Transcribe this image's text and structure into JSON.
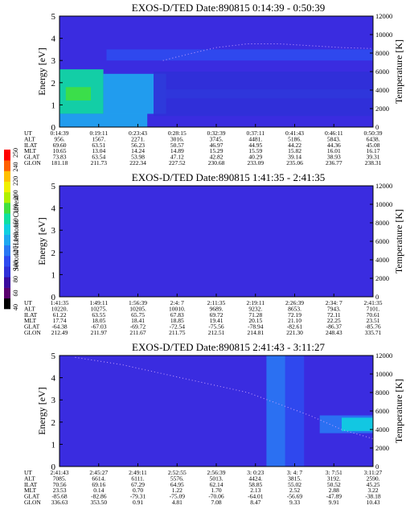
{
  "colorbar": {
    "title": "Second Harmonic Current",
    "ticks": [
      "40",
      "60",
      "80",
      "100",
      "120",
      "140",
      "160",
      "180",
      "200",
      "220",
      "240",
      "250"
    ],
    "colors": [
      "#000000",
      "#5a006e",
      "#3a0a9e",
      "#3030d8",
      "#2f4bf0",
      "#2a78f4",
      "#1fa8f0",
      "#10d0e0",
      "#10e0a0",
      "#40e040",
      "#b0f000",
      "#f0f000",
      "#ffc000",
      "#ff6000",
      "#ff0000"
    ]
  },
  "chart_data": [
    {
      "type": "heatmap",
      "title": "EXOS-D/TED   Date:890815  0:14:39 - 0:50:39",
      "ylabel": "Energy [eV]",
      "ylabel_right": "Temperature [K]",
      "ylim": [
        0,
        5
      ],
      "yticks": [
        "0",
        "1",
        "2",
        "3",
        "4",
        "5"
      ],
      "ylim_right": [
        0,
        12000
      ],
      "yticks_right": [
        "0",
        "2000",
        "4000",
        "6000",
        "8000",
        "10000",
        "12000"
      ],
      "row_labels": [
        "UT",
        "ALT",
        "ILAT",
        "MLT",
        "GLAT",
        "GLON"
      ],
      "columns": [
        [
          "0:14:39",
          "956.",
          "69.60",
          "10.65",
          "73.83",
          "181.18"
        ],
        [
          "0:19:11",
          "1567.",
          "63.51",
          "13.04",
          "63.54",
          "211.73"
        ],
        [
          "0:23:43",
          "2271.",
          "56.23",
          "14.24",
          "53.98",
          "222.34"
        ],
        [
          "0:28:15",
          "3016.",
          "50.57",
          "14.89",
          "47.12",
          "227.52"
        ],
        [
          "0:32:39",
          "3745.",
          "46.97",
          "15.29",
          "42.82",
          "230.68"
        ],
        [
          "0:37:11",
          "4481.",
          "44.95",
          "15.59",
          "40.29",
          "233.09"
        ],
        [
          "0:41:43",
          "5186.",
          "44.22",
          "15.82",
          "39.14",
          "235.06"
        ],
        [
          "0:46:11",
          "5843.",
          "44.36",
          "16.01",
          "38.93",
          "236.77"
        ],
        [
          "0:50:39",
          "6438.",
          "45.08",
          "16.17",
          "39.31",
          "238.31"
        ]
      ],
      "bands": [
        {
          "e0": 0,
          "e1": 0.6,
          "t0": 0,
          "t1": 0.28,
          "color": "#1fa8f0"
        },
        {
          "e0": 0.6,
          "e1": 2.6,
          "t0": 0,
          "t1": 0.14,
          "color": "#10e0a0"
        },
        {
          "e0": 0.6,
          "e1": 2.4,
          "t0": 0.14,
          "t1": 0.34,
          "color": "#1fa8f0"
        },
        {
          "e0": 1.2,
          "e1": 1.8,
          "t0": 0.02,
          "t1": 0.1,
          "color": "#40e040"
        },
        {
          "e0": 1.3,
          "e1": 1.7,
          "t0": 0.34,
          "t1": 1.0,
          "color": "#2a78f4"
        },
        {
          "e0": 3.0,
          "e1": 3.5,
          "t0": 0.15,
          "t1": 1.0,
          "color": "#2f4bf0"
        },
        {
          "e0": 0.5,
          "e1": 2.5,
          "t0": 0.3,
          "t1": 1.0,
          "color": "#3030d8"
        }
      ],
      "temperature": {
        "t": [
          0.33,
          0.4,
          0.5,
          0.6,
          0.7,
          0.8,
          0.9,
          1.0
        ],
        "K": [
          7200,
          7800,
          8600,
          9000,
          9000,
          8800,
          8600,
          8500
        ]
      }
    },
    {
      "type": "heatmap",
      "title": "EXOS-D/TED   Date:890815  1:41:35 - 2:41:35",
      "ylabel": "Energy [eV]",
      "ylabel_right": "Temperature [K]",
      "ylim": [
        0,
        5
      ],
      "yticks": [
        "0",
        "1",
        "2",
        "3",
        "4",
        "5"
      ],
      "ylim_right": [
        0,
        12000
      ],
      "yticks_right": [
        "0",
        "2000",
        "4000",
        "6000",
        "8000",
        "10000",
        "12000"
      ],
      "row_labels": [
        "UT",
        "ALT",
        "ILAT",
        "MLT",
        "GLAT",
        "GLON"
      ],
      "columns": [
        [
          "1:41:35",
          "10220.",
          "61.22",
          "17.74",
          "-64.38",
          "212.49"
        ],
        [
          "1:49:11",
          "10275.",
          "63.55",
          "18.05",
          "-67.03",
          "211.97"
        ],
        [
          "1:56:39",
          "10205.",
          "65.75",
          "18.41",
          "-69.72",
          "211.67"
        ],
        [
          "2:4: 7",
          "10010.",
          "67.83",
          "18.85",
          "-72.54",
          "211.75"
        ],
        [
          "2:11:35",
          "9689.",
          "69.72",
          "19.41",
          "-75.56",
          "212.51"
        ],
        [
          "2:19:11",
          "9232.",
          "71.28",
          "20.15",
          "-78.94",
          "214.81"
        ],
        [
          "2:26:39",
          "8653.",
          "72.19",
          "21.10",
          "-82.61",
          "221.30"
        ],
        [
          "2:34: 7",
          "7943.",
          "72.11",
          "22.25",
          "-86.37",
          "248.43"
        ],
        [
          "2:41:35",
          "7101.",
          "70.61",
          "23.51",
          "-85.76",
          "335.71"
        ]
      ],
      "bands": [],
      "temperature": {
        "t": [],
        "K": []
      }
    },
    {
      "type": "heatmap",
      "title": "EXOS-D/TED   Date:890815  2:41:43 - 3:11:27",
      "ylabel": "Energy [eV]",
      "ylabel_right": "Temperature [K]",
      "ylim": [
        0,
        5
      ],
      "yticks": [
        "0",
        "1",
        "2",
        "3",
        "4",
        "5"
      ],
      "ylim_right": [
        0,
        12000
      ],
      "yticks_right": [
        "0",
        "2000",
        "4000",
        "6000",
        "8000",
        "10000",
        "12000"
      ],
      "row_labels": [
        "UT",
        "ALT",
        "ILAT",
        "MLT",
        "GLAT",
        "GLON"
      ],
      "columns": [
        [
          "2:41:43",
          "7085.",
          "70.56",
          "23.53",
          "-85.68",
          "336.63"
        ],
        [
          "2:45:27",
          "6614.",
          "69.16",
          "0.14",
          "-82.86",
          "353.50"
        ],
        [
          "2:49:11",
          "6111.",
          "67.29",
          "0.70",
          "-79.31",
          "0.91"
        ],
        [
          "2:52:55",
          "5576.",
          "64.95",
          "1.22",
          "-75.09",
          "4.81"
        ],
        [
          "2:56:39",
          "5013.",
          "62.14",
          "1.70",
          "-70.06",
          "7.08"
        ],
        [
          "3: 0:23",
          "4424.",
          "58.85",
          "2.13",
          "-64.01",
          "8.47"
        ],
        [
          "3: 4: 7",
          "3815.",
          "55.02",
          "2.52",
          "-56.69",
          "9.33"
        ],
        [
          "3: 7:51",
          "3192.",
          "50.52",
          "2.88",
          "-47.89",
          "9.91"
        ],
        [
          "3:11:27",
          "2590.",
          "45.25",
          "3.22",
          "-38.18",
          "10.43"
        ]
      ],
      "bands": [
        {
          "e0": 0,
          "e1": 5,
          "t0": 0.66,
          "t1": 0.72,
          "color": "#2a78f4"
        },
        {
          "e0": 0,
          "e1": 5,
          "t0": 0.72,
          "t1": 0.78,
          "color": "#2f4bf0"
        },
        {
          "e0": 1.5,
          "e1": 2.3,
          "t0": 0.83,
          "t1": 1.0,
          "color": "#2a78f4"
        },
        {
          "e0": 1.6,
          "e1": 2.2,
          "t0": 0.9,
          "t1": 1.0,
          "color": "#10d0e0"
        }
      ],
      "temperature": {
        "t": [
          0.05,
          0.2,
          0.4,
          0.6,
          0.8,
          0.9,
          1.0
        ],
        "K": [
          11800,
          11000,
          9500,
          8000,
          5500,
          4000,
          3000
        ]
      }
    }
  ]
}
